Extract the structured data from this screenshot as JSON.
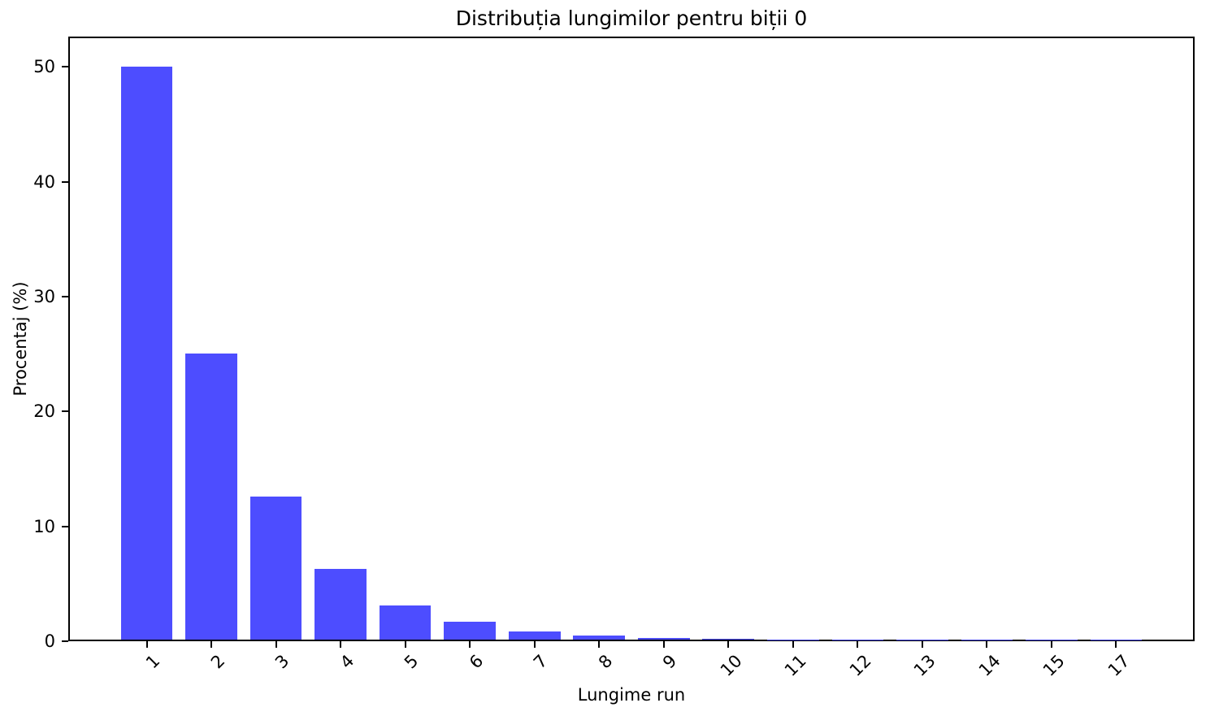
{
  "figure": {
    "background": "#ffffff"
  },
  "chart_data": {
    "type": "bar",
    "title": "Distribuția lungimilor pentru biții 0",
    "xlabel": "Lungime run",
    "ylabel": "Procentaj (%)",
    "categories": [
      "1",
      "2",
      "3",
      "4",
      "5",
      "6",
      "7",
      "8",
      "9",
      "10",
      "11",
      "12",
      "13",
      "14",
      "15",
      "17"
    ],
    "values": [
      50.0,
      25.0,
      12.5,
      6.2,
      3.0,
      1.55,
      0.68,
      0.34,
      0.15,
      0.07,
      0.03,
      0.015,
      0.008,
      0.004,
      0.002,
      0.001
    ],
    "ylim": [
      0,
      52.5
    ],
    "yticks": [
      0,
      10,
      20,
      30,
      40,
      50
    ],
    "xtick_rotation": 45,
    "grid": false,
    "legend": null,
    "bar_color": "#4d4dff",
    "axis_color": "#000000",
    "text_color": "#000000"
  }
}
